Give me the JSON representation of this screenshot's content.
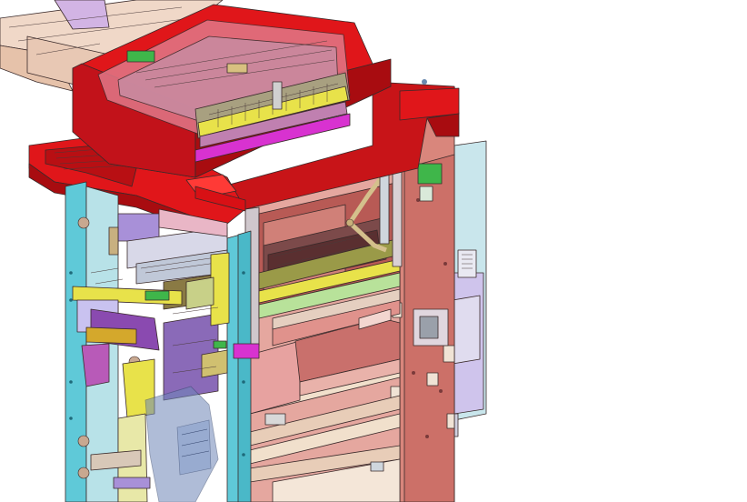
{
  "figure": {
    "subject": "multifunction-printer-cad-cutaway",
    "view": "isometric",
    "colors": {
      "background": "#ffffff",
      "cover_red": "#e0161a",
      "cover_red_dark": "#a80c10",
      "frame_salmon": "#d9867c",
      "frame_salmon_dark": "#b8574f",
      "side_panel_cyan": "#5fc9d8",
      "tray_tan": "#e8cdb8",
      "tray_pink": "#e9b6c6",
      "lavender": "#a890d8",
      "light_panel": "#c9e6ec",
      "yellow_part": "#e8e24a",
      "green_part": "#3fb64a",
      "olive_part": "#9a9a48",
      "purple_part": "#8a4ab0",
      "magenta_part": "#d832d0",
      "blue_glass": "#6e86b8",
      "beige_panel": "#ead8c2",
      "rose_panel": "#e7a2a0"
    }
  }
}
